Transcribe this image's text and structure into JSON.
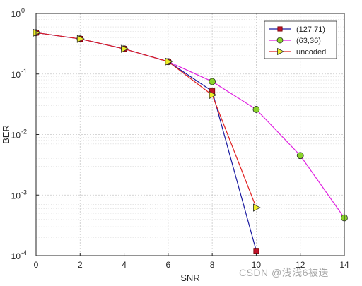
{
  "chart_data": {
    "type": "line",
    "title": "",
    "xlabel": "SNR",
    "ylabel": "BER",
    "xlim": [
      0,
      14
    ],
    "ylim": [
      0.0001,
      1
    ],
    "y_scale": "log",
    "x_ticks": [
      "0",
      "2",
      "4",
      "6",
      "8",
      "10",
      "12",
      "14"
    ],
    "y_ticks": [
      {
        "base": "10",
        "exp": "-4",
        "value": 0.0001
      },
      {
        "base": "10",
        "exp": "-3",
        "value": 0.001
      },
      {
        "base": "10",
        "exp": "-2",
        "value": 0.01
      },
      {
        "base": "10",
        "exp": "-1",
        "value": 0.1
      },
      {
        "base": "10",
        "exp": "0",
        "value": 1
      }
    ],
    "grid": true,
    "legend_position": "top-right",
    "series": [
      {
        "name": "(127,71)",
        "color": "#1a1aa0",
        "marker": "square",
        "marker_fill": "#c0142c",
        "x": [
          0,
          2,
          4,
          6,
          8,
          10
        ],
        "y": [
          0.48,
          0.38,
          0.26,
          0.16,
          0.052,
          0.00012
        ]
      },
      {
        "name": "(63,36)",
        "color": "#e020e0",
        "marker": "circle",
        "marker_fill": "#8ad42a",
        "x": [
          0,
          2,
          4,
          6,
          8,
          10,
          12,
          14
        ],
        "y": [
          0.48,
          0.38,
          0.26,
          0.16,
          0.075,
          0.026,
          0.0045,
          0.00042
        ]
      },
      {
        "name": "uncoded",
        "color": "#e02020",
        "marker": "triangle-right",
        "marker_fill": "#ecec28",
        "x": [
          0,
          2,
          4,
          6,
          8,
          10
        ],
        "y": [
          0.48,
          0.38,
          0.26,
          0.16,
          0.045,
          0.00062
        ]
      }
    ]
  },
  "watermark": "CSDN @浅浅6被迭"
}
